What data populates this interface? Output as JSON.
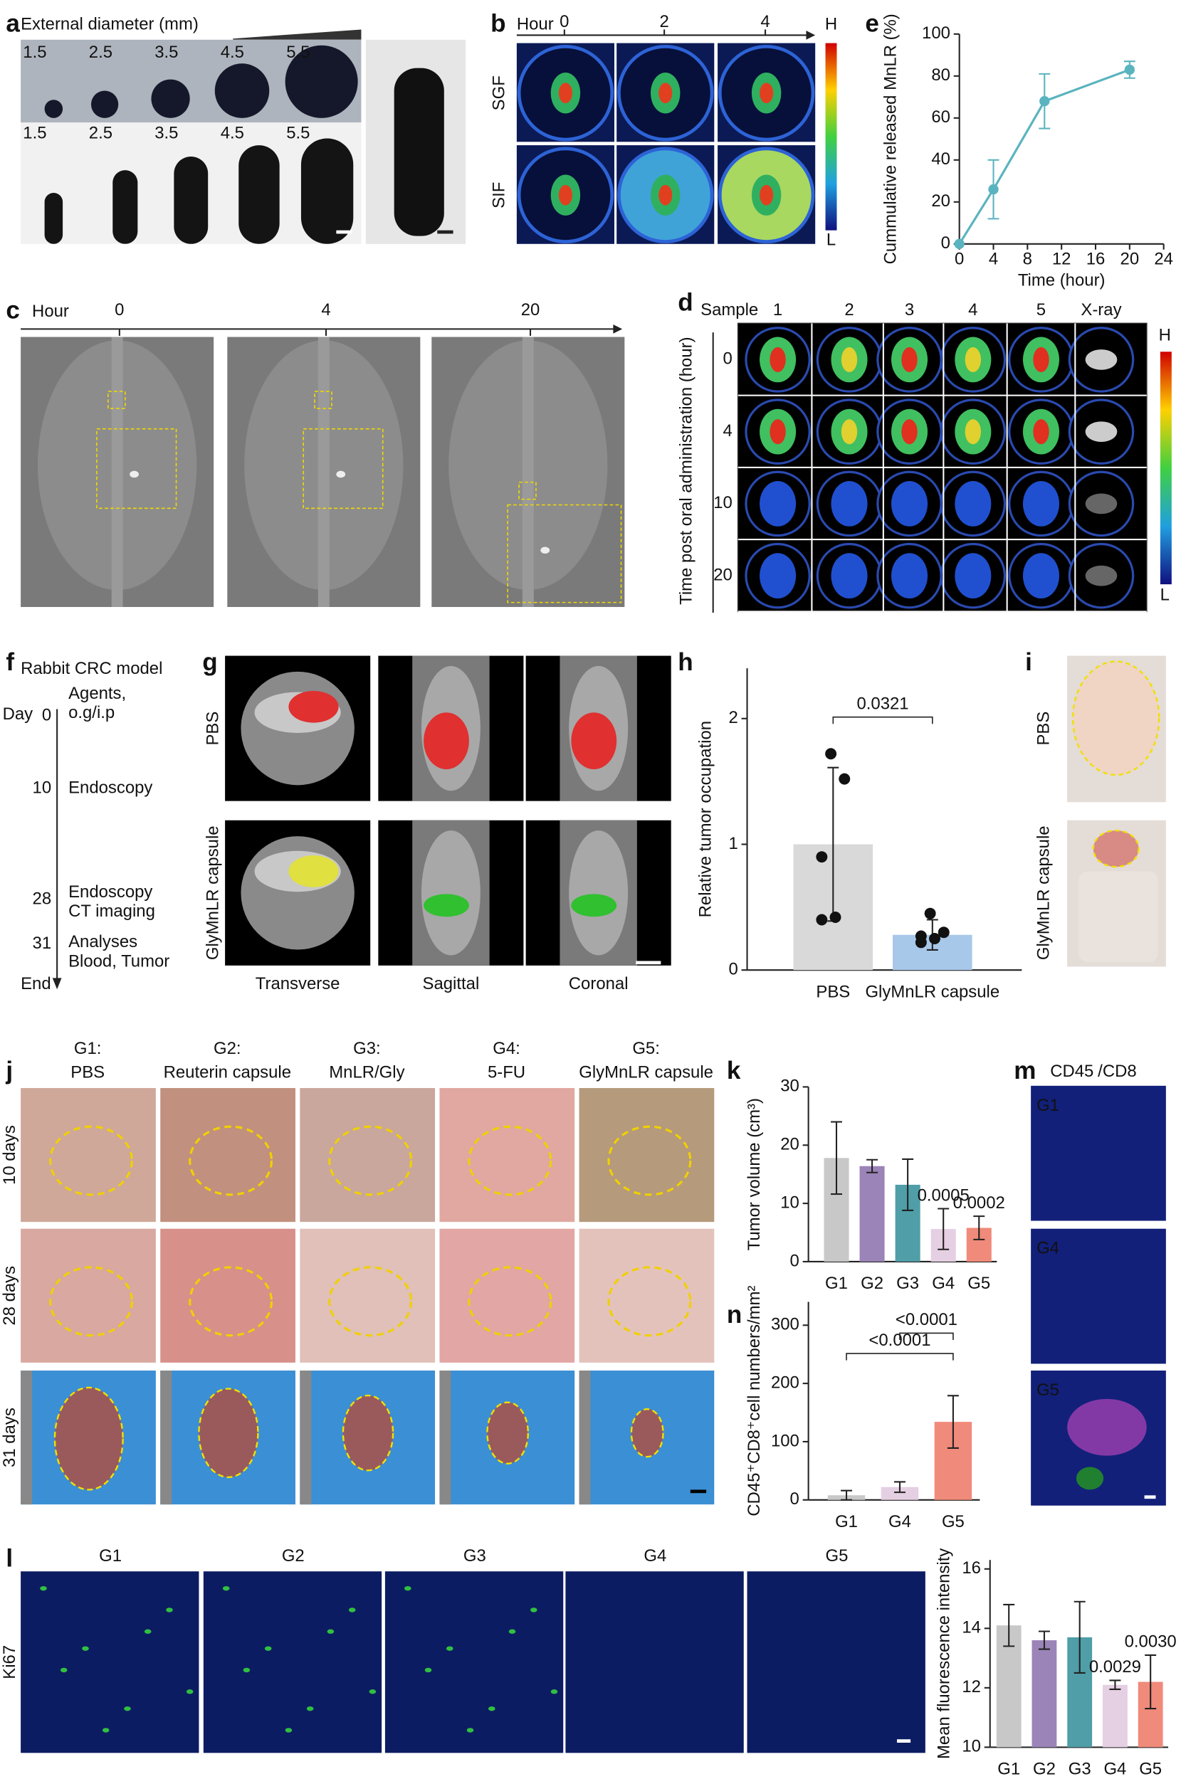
{
  "panels": {
    "a": {
      "label": "a",
      "title": "External diameter (mm)",
      "top_sizes": [
        "1.5",
        "2.5",
        "3.5",
        "4.5",
        "5.5"
      ],
      "bottom_sizes": [
        "1.5",
        "2.5",
        "3.5",
        "4.5",
        "5.5"
      ]
    },
    "b": {
      "label": "b",
      "axis_title": "Hour",
      "hours": [
        "0",
        "2",
        "4"
      ],
      "rows": [
        "SGF",
        "SIF"
      ],
      "scale_high": "H",
      "scale_low": "L"
    },
    "c": {
      "label": "c",
      "axis_title": "Hour",
      "hours": [
        "0",
        "4",
        "20"
      ]
    },
    "d": {
      "label": "d",
      "column_title": "Sample",
      "columns": [
        "1",
        "2",
        "3",
        "4",
        "5",
        "X-ray"
      ],
      "row_title": "Time post oral administration (hour)",
      "rows": [
        "0",
        "4",
        "10",
        "20"
      ],
      "scale_high": "H",
      "scale_low": "L"
    },
    "f": {
      "label": "f",
      "title": "Rabbit CRC model",
      "start": "Day",
      "end": "End",
      "events": [
        {
          "day": "0",
          "text": [
            "Agents,",
            "o.g/i.p"
          ]
        },
        {
          "day": "10",
          "text": [
            "Endoscopy"
          ]
        },
        {
          "day": "28",
          "text": [
            "Endoscopy",
            "CT imaging"
          ]
        },
        {
          "day": "31",
          "text": [
            "Analyses",
            "Blood, Tumor"
          ]
        }
      ]
    },
    "g": {
      "label": "g",
      "rows": [
        "PBS",
        "GlyMnLR capsule"
      ],
      "columns": [
        "Transverse",
        "Sagittal",
        "Coronal"
      ]
    },
    "i": {
      "label": "i",
      "rows": [
        "PBS",
        "GlyMnLR capsule"
      ]
    },
    "j": {
      "label": "j",
      "groups": [
        {
          "id": "G1:",
          "name": "PBS"
        },
        {
          "id": "G2:",
          "name": "Reuterin capsule"
        },
        {
          "id": "G3:",
          "name": "MnLR/Gly"
        },
        {
          "id": "G4:",
          "name": "5-FU"
        },
        {
          "id": "G5:",
          "name": "GlyMnLR capsule"
        }
      ],
      "rows": [
        "10 days",
        "28 days",
        "31 days"
      ]
    },
    "m": {
      "label": "m",
      "stain_1": "CD45",
      "stain_2": "/CD8",
      "rows": [
        "G1",
        "G4",
        "G5"
      ]
    },
    "l": {
      "label": "l",
      "stain": "Ki67",
      "groups": [
        "G1",
        "G2",
        "G3",
        "G4",
        "G5"
      ]
    }
  },
  "chart_data": [
    {
      "panel_label": "e",
      "type": "line",
      "x": [
        0,
        4,
        10,
        20
      ],
      "values": [
        0,
        26,
        68,
        83
      ],
      "errors": [
        null,
        14,
        13,
        4
      ],
      "color": "#5ab4bf",
      "xlim": [
        0,
        24
      ],
      "xticks": [
        0,
        4,
        8,
        12,
        16,
        20,
        24
      ],
      "ylim": [
        0,
        100
      ],
      "yticks": [
        0,
        20,
        40,
        60,
        80,
        100
      ],
      "x_label": "Time (hour)",
      "y_label": "Cummulative released MnLR (%)"
    },
    {
      "panel_label": "h",
      "type": "bar",
      "categories": [
        "PBS",
        "GlyMnLR capsule"
      ],
      "values": [
        1.0,
        0.28
      ],
      "errors": [
        0.61,
        0.12
      ],
      "points": [
        [
          1.72,
          1.52,
          0.9,
          0.42,
          0.4
        ],
        [
          0.45,
          0.3,
          0.27,
          0.25,
          0.22
        ]
      ],
      "colors": [
        "#d9d9d9",
        "#a8c8ea"
      ],
      "ylim": [
        0,
        2.4
      ],
      "yticks": [
        0,
        1,
        2
      ],
      "y_label": "Relative tumor occupation",
      "comparisons": [
        {
          "label": "0.0321",
          "pair": [
            0,
            1
          ]
        }
      ]
    },
    {
      "panel_label": "k",
      "type": "bar",
      "categories": [
        "G1",
        "G2",
        "G3",
        "G4",
        "G5"
      ],
      "values": [
        17.8,
        16.4,
        13.2,
        5.6,
        5.8
      ],
      "errors": [
        6.2,
        1.1,
        4.4,
        3.5,
        2.0
      ],
      "colors": [
        "#c8c8c8",
        "#9b84b8",
        "#4f9ea8",
        "#e5cfe3",
        "#f08a7a"
      ],
      "ylim": [
        0,
        30
      ],
      "yticks": [
        0,
        10,
        20,
        30
      ],
      "y_label": "Tumor volume (cm³)",
      "p_values": [
        null,
        null,
        null,
        "0.0005",
        "0.0002"
      ]
    },
    {
      "panel_label": "n",
      "type": "bar",
      "categories": [
        "G1",
        "G4",
        "G5"
      ],
      "values": [
        8,
        22,
        134
      ],
      "errors": [
        8,
        9,
        45
      ],
      "colors": [
        "#c8c8c8",
        "#e5cfe3",
        "#f08a7a"
      ],
      "ylim": [
        0,
        340
      ],
      "yticks": [
        0,
        100,
        200,
        300
      ],
      "y_label": "CD45⁺CD8⁺cell numbers/mm²",
      "comparisons": [
        {
          "label": "<0.0001",
          "pair": [
            0,
            2
          ]
        },
        {
          "label": "<0.0001",
          "pair": [
            1,
            2
          ]
        }
      ]
    },
    {
      "type": "bar",
      "categories": [
        "G1",
        "G2",
        "G3",
        "G4",
        "G5"
      ],
      "values": [
        14.1,
        13.6,
        13.7,
        12.1,
        12.2
      ],
      "errors": [
        0.7,
        0.3,
        1.2,
        0.15,
        0.9
      ],
      "colors": [
        "#c8c8c8",
        "#9b84b8",
        "#4f9ea8",
        "#e5cfe3",
        "#f08a7a"
      ],
      "ylim": [
        10,
        16.3
      ],
      "yticks": [
        10,
        12,
        14,
        16
      ],
      "y_label": "Mean fluorescence intensity",
      "p_values": [
        null,
        null,
        null,
        "0.0029",
        "0.0030"
      ]
    }
  ]
}
